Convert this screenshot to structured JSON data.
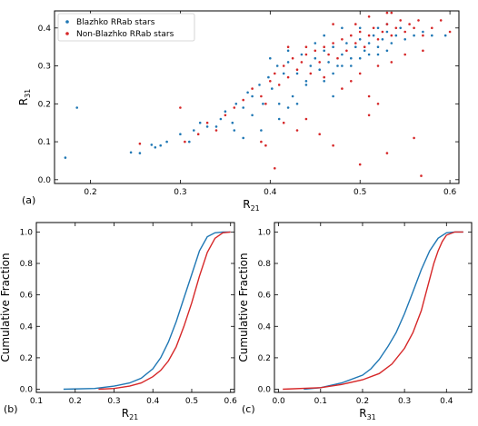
{
  "chart_data": [
    {
      "panel_label": "(a)",
      "type": "scatter",
      "xlabel": "R",
      "xlabel_sub": "21",
      "ylabel": "R",
      "ylabel_sub": "31",
      "xlim": [
        0.16,
        0.61
      ],
      "ylim": [
        -0.01,
        0.445
      ],
      "xticks": [
        0.2,
        0.3,
        0.4,
        0.5,
        0.6
      ],
      "xticklabels": [
        "0.2",
        "0.3",
        "0.4",
        "0.5",
        "0.6"
      ],
      "yticks": [
        0.0,
        0.1,
        0.2,
        0.3,
        0.4
      ],
      "yticklabels": [
        "0.0",
        "0.1",
        "0.2",
        "0.3",
        "0.4"
      ],
      "legend_position": "top-left",
      "series": [
        {
          "name": "Blazhko RRab stars",
          "color": "#1f77b4",
          "points": [
            [
              0.172,
              0.058
            ],
            [
              0.185,
              0.19
            ],
            [
              0.245,
              0.072
            ],
            [
              0.255,
              0.07
            ],
            [
              0.268,
              0.092
            ],
            [
              0.272,
              0.085
            ],
            [
              0.278,
              0.09
            ],
            [
              0.285,
              0.1
            ],
            [
              0.3,
              0.12
            ],
            [
              0.31,
              0.1
            ],
            [
              0.315,
              0.13
            ],
            [
              0.322,
              0.15
            ],
            [
              0.33,
              0.14
            ],
            [
              0.34,
              0.14
            ],
            [
              0.345,
              0.16
            ],
            [
              0.35,
              0.18
            ],
            [
              0.358,
              0.15
            ],
            [
              0.362,
              0.2
            ],
            [
              0.37,
              0.19
            ],
            [
              0.375,
              0.23
            ],
            [
              0.38,
              0.22
            ],
            [
              0.388,
              0.25
            ],
            [
              0.392,
              0.2
            ],
            [
              0.398,
              0.27
            ],
            [
              0.402,
              0.24
            ],
            [
              0.408,
              0.3
            ],
            [
              0.41,
              0.2
            ],
            [
              0.415,
              0.28
            ],
            [
              0.42,
              0.31
            ],
            [
              0.425,
              0.22
            ],
            [
              0.43,
              0.28
            ],
            [
              0.435,
              0.33
            ],
            [
              0.44,
              0.26
            ],
            [
              0.445,
              0.3
            ],
            [
              0.45,
              0.32
            ],
            [
              0.455,
              0.29
            ],
            [
              0.46,
              0.34
            ],
            [
              0.465,
              0.31
            ],
            [
              0.47,
              0.35
            ],
            [
              0.475,
              0.3
            ],
            [
              0.48,
              0.33
            ],
            [
              0.485,
              0.36
            ],
            [
              0.49,
              0.32
            ],
            [
              0.495,
              0.35
            ],
            [
              0.5,
              0.37
            ],
            [
              0.505,
              0.34
            ],
            [
              0.51,
              0.36
            ],
            [
              0.515,
              0.38
            ],
            [
              0.52,
              0.35
            ],
            [
              0.525,
              0.37
            ],
            [
              0.53,
              0.39
            ],
            [
              0.535,
              0.36
            ],
            [
              0.54,
              0.38
            ],
            [
              0.545,
              0.4
            ],
            [
              0.55,
              0.37
            ],
            [
              0.56,
              0.38
            ],
            [
              0.57,
              0.39
            ],
            [
              0.58,
              0.38
            ],
            [
              0.595,
              0.38
            ],
            [
              0.38,
              0.17
            ],
            [
              0.42,
              0.19
            ],
            [
              0.44,
              0.25
            ],
            [
              0.46,
              0.26
            ],
            [
              0.47,
              0.28
            ],
            [
              0.48,
              0.3
            ],
            [
              0.49,
              0.3
            ],
            [
              0.5,
              0.32
            ],
            [
              0.51,
              0.33
            ],
            [
              0.52,
              0.33
            ],
            [
              0.53,
              0.34
            ],
            [
              0.45,
              0.36
            ],
            [
              0.46,
              0.38
            ],
            [
              0.5,
              0.4
            ],
            [
              0.52,
              0.4
            ],
            [
              0.53,
              0.41
            ],
            [
              0.48,
              0.4
            ],
            [
              0.47,
              0.22
            ],
            [
              0.43,
              0.2
            ],
            [
              0.41,
              0.16
            ],
            [
              0.39,
              0.13
            ],
            [
              0.37,
              0.11
            ],
            [
              0.36,
              0.13
            ],
            [
              0.4,
              0.32
            ],
            [
              0.42,
              0.34
            ]
          ]
        },
        {
          "name": "Non-Blazhko RRab stars",
          "color": "#d62728",
          "points": [
            [
              0.255,
              0.095
            ],
            [
              0.3,
              0.19
            ],
            [
              0.305,
              0.1
            ],
            [
              0.32,
              0.12
            ],
            [
              0.33,
              0.15
            ],
            [
              0.34,
              0.13
            ],
            [
              0.35,
              0.17
            ],
            [
              0.36,
              0.19
            ],
            [
              0.37,
              0.21
            ],
            [
              0.38,
              0.24
            ],
            [
              0.39,
              0.22
            ],
            [
              0.395,
              0.2
            ],
            [
              0.4,
              0.26
            ],
            [
              0.405,
              0.28
            ],
            [
              0.41,
              0.25
            ],
            [
              0.415,
              0.3
            ],
            [
              0.42,
              0.27
            ],
            [
              0.425,
              0.32
            ],
            [
              0.43,
              0.29
            ],
            [
              0.435,
              0.31
            ],
            [
              0.44,
              0.33
            ],
            [
              0.445,
              0.28
            ],
            [
              0.45,
              0.34
            ],
            [
              0.455,
              0.31
            ],
            [
              0.46,
              0.35
            ],
            [
              0.465,
              0.33
            ],
            [
              0.47,
              0.36
            ],
            [
              0.475,
              0.32
            ],
            [
              0.48,
              0.37
            ],
            [
              0.485,
              0.34
            ],
            [
              0.49,
              0.38
            ],
            [
              0.495,
              0.36
            ],
            [
              0.5,
              0.39
            ],
            [
              0.505,
              0.35
            ],
            [
              0.51,
              0.38
            ],
            [
              0.515,
              0.4
            ],
            [
              0.52,
              0.37
            ],
            [
              0.525,
              0.39
            ],
            [
              0.53,
              0.41
            ],
            [
              0.535,
              0.38
            ],
            [
              0.54,
              0.4
            ],
            [
              0.545,
              0.42
            ],
            [
              0.55,
              0.39
            ],
            [
              0.555,
              0.41
            ],
            [
              0.56,
              0.4
            ],
            [
              0.565,
              0.42
            ],
            [
              0.57,
              0.38
            ],
            [
              0.58,
              0.4
            ],
            [
              0.59,
              0.42
            ],
            [
              0.6,
              0.39
            ],
            [
              0.405,
              0.03
            ],
            [
              0.415,
              0.15
            ],
            [
              0.43,
              0.13
            ],
            [
              0.44,
              0.16
            ],
            [
              0.455,
              0.12
            ],
            [
              0.47,
              0.09
            ],
            [
              0.5,
              0.04
            ],
            [
              0.51,
              0.17
            ],
            [
              0.52,
              0.2
            ],
            [
              0.53,
              0.07
            ],
            [
              0.56,
              0.11
            ],
            [
              0.568,
              0.01
            ],
            [
              0.39,
              0.1
            ],
            [
              0.395,
              0.09
            ],
            [
              0.48,
              0.24
            ],
            [
              0.5,
              0.28
            ],
            [
              0.52,
              0.3
            ],
            [
              0.535,
              0.31
            ],
            [
              0.53,
              0.44
            ],
            [
              0.51,
              0.43
            ],
            [
              0.47,
              0.41
            ],
            [
              0.44,
              0.35
            ],
            [
              0.42,
              0.35
            ],
            [
              0.46,
              0.27
            ],
            [
              0.49,
              0.26
            ],
            [
              0.51,
              0.22
            ],
            [
              0.55,
              0.33
            ],
            [
              0.57,
              0.34
            ],
            [
              0.495,
              0.41
            ],
            [
              0.535,
              0.44
            ]
          ]
        }
      ]
    },
    {
      "panel_label": "(b)",
      "type": "line",
      "xlabel": "R",
      "xlabel_sub": "21",
      "ylabel": "Cumulative Fraction",
      "xlim": [
        0.1,
        0.61
      ],
      "ylim": [
        -0.02,
        1.06
      ],
      "xticks": [
        0.1,
        0.2,
        0.3,
        0.4,
        0.5,
        0.6
      ],
      "xticklabels": [
        "0.1",
        "0.2",
        "0.3",
        "0.4",
        "0.5",
        "0.6"
      ],
      "yticks": [
        0.0,
        0.2,
        0.4,
        0.6,
        0.8,
        1.0
      ],
      "yticklabels": [
        "0.0",
        "0.2",
        "0.4",
        "0.6",
        "0.8",
        "1.0"
      ],
      "series": [
        {
          "color": "#1f77b4",
          "x": [
            0.17,
            0.25,
            0.3,
            0.34,
            0.37,
            0.4,
            0.42,
            0.44,
            0.46,
            0.48,
            0.5,
            0.52,
            0.54,
            0.56,
            0.58,
            0.6
          ],
          "y": [
            0.0,
            0.005,
            0.02,
            0.04,
            0.07,
            0.13,
            0.2,
            0.3,
            0.43,
            0.58,
            0.73,
            0.88,
            0.97,
            0.995,
            1.0,
            1.0
          ]
        },
        {
          "color": "#d62728",
          "x": [
            0.26,
            0.3,
            0.34,
            0.37,
            0.4,
            0.42,
            0.44,
            0.46,
            0.48,
            0.5,
            0.52,
            0.54,
            0.56,
            0.58,
            0.6
          ],
          "y": [
            0.0,
            0.005,
            0.02,
            0.04,
            0.08,
            0.12,
            0.18,
            0.27,
            0.4,
            0.55,
            0.72,
            0.87,
            0.96,
            0.995,
            1.0
          ]
        }
      ]
    },
    {
      "panel_label": "(c)",
      "type": "line",
      "xlabel": "R",
      "xlabel_sub": "31",
      "ylabel": "Cumulative Fraction",
      "xlim": [
        -0.01,
        0.46
      ],
      "ylim": [
        -0.02,
        1.06
      ],
      "xticks": [
        0.0,
        0.1,
        0.2,
        0.3,
        0.4
      ],
      "xticklabels": [
        "0.0",
        "0.1",
        "0.2",
        "0.3",
        "0.4"
      ],
      "yticks": [
        0.0,
        0.2,
        0.4,
        0.6,
        0.8,
        1.0
      ],
      "yticklabels": [
        "0.0",
        "0.2",
        "0.4",
        "0.6",
        "0.8",
        "1.0"
      ],
      "series": [
        {
          "color": "#1f77b4",
          "x": [
            0.06,
            0.1,
            0.15,
            0.2,
            0.22,
            0.24,
            0.26,
            0.28,
            0.3,
            0.32,
            0.34,
            0.36,
            0.38,
            0.4,
            0.42,
            0.44
          ],
          "y": [
            0.0,
            0.01,
            0.04,
            0.09,
            0.13,
            0.19,
            0.27,
            0.36,
            0.48,
            0.62,
            0.76,
            0.88,
            0.96,
            0.995,
            1.0,
            1.0
          ]
        },
        {
          "color": "#d62728",
          "x": [
            0.01,
            0.1,
            0.15,
            0.2,
            0.24,
            0.27,
            0.3,
            0.32,
            0.34,
            0.35,
            0.36,
            0.37,
            0.38,
            0.39,
            0.4,
            0.42,
            0.44
          ],
          "y": [
            0.0,
            0.01,
            0.03,
            0.06,
            0.1,
            0.16,
            0.26,
            0.36,
            0.5,
            0.6,
            0.7,
            0.8,
            0.88,
            0.94,
            0.98,
            1.0,
            1.0
          ]
        }
      ]
    }
  ]
}
